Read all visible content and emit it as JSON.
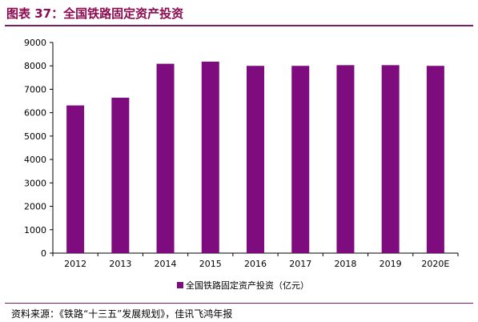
{
  "figure": {
    "title": "图表 37：全国铁路固定资产投资",
    "source": "资料来源：《铁路“十三五”发展规划》，佳讯飞鸿年报"
  },
  "colors": {
    "bar": "#7e0c7e",
    "title": "#8b0a50",
    "rule": "#7b1f5f"
  },
  "chart_data": {
    "type": "bar",
    "title": "",
    "xlabel": "",
    "ylabel": "",
    "categories": [
      "2012",
      "2013",
      "2014",
      "2015",
      "2016",
      "2017",
      "2018",
      "2019",
      "2020E"
    ],
    "series": [
      {
        "name": "全国铁路固定资产投资（亿元）",
        "values": [
          6310,
          6640,
          8090,
          8180,
          8000,
          8000,
          8030,
          8030,
          8000
        ]
      }
    ],
    "ylim": [
      0,
      9000
    ],
    "yticks": [
      0,
      1000,
      2000,
      3000,
      4000,
      5000,
      6000,
      7000,
      8000,
      9000
    ],
    "grid": false,
    "legend_position": "bottom"
  }
}
